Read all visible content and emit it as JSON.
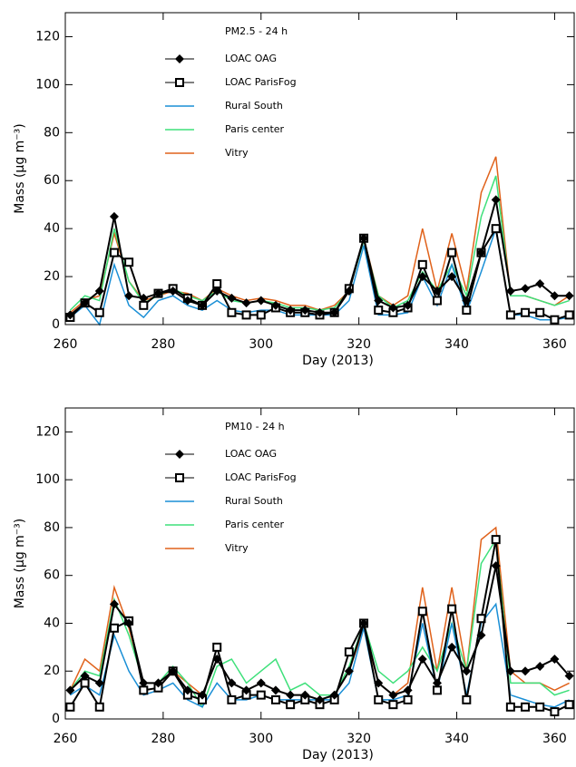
{
  "chart_data": [
    {
      "type": "line",
      "title": "PM2.5 - 24 h",
      "xlabel": "Day (2013)",
      "ylabel": "Mass (μg m⁻³)",
      "xlim": [
        260,
        364
      ],
      "ylim": [
        0,
        130
      ],
      "xticks": [
        260,
        280,
        300,
        320,
        340,
        360
      ],
      "yticks": [
        0,
        20,
        40,
        60,
        80,
        100,
        120
      ],
      "x": [
        261,
        264,
        267,
        270,
        273,
        276,
        279,
        282,
        285,
        288,
        291,
        294,
        297,
        300,
        303,
        306,
        309,
        312,
        315,
        318,
        321,
        324,
        327,
        330,
        333,
        336,
        339,
        342,
        345,
        348,
        351,
        354,
        357,
        360,
        363
      ],
      "series": [
        {
          "name": "LOAC OAG",
          "color": "#000000",
          "marker": "diamond",
          "values": [
            4,
            9,
            14,
            45,
            12,
            11,
            13,
            14,
            10,
            8,
            14,
            11,
            9,
            10,
            8,
            6,
            6,
            5,
            5,
            14,
            36,
            10,
            7,
            8,
            20,
            14,
            20,
            10,
            30,
            52,
            14,
            15,
            17,
            12,
            12
          ]
        },
        {
          "name": "LOAC ParisFog",
          "color": "#000000",
          "marker": "square",
          "values": [
            3,
            9,
            5,
            30,
            26,
            8,
            13,
            15,
            11,
            8,
            17,
            5,
            4,
            4,
            7,
            5,
            5,
            4,
            5,
            15,
            36,
            6,
            5,
            7,
            25,
            10,
            30,
            6,
            30,
            40,
            4,
            5,
            5,
            2,
            4
          ]
        },
        {
          "name": "Rural South",
          "color": "#1a8fd6",
          "values": [
            3,
            8,
            0,
            25,
            8,
            3,
            10,
            12,
            8,
            6,
            10,
            6,
            5,
            6,
            6,
            4,
            4,
            4,
            4,
            10,
            33,
            4,
            4,
            5,
            20,
            8,
            25,
            5,
            22,
            40,
            4,
            4,
            2,
            2,
            3
          ]
        },
        {
          "name": "Paris center",
          "color": "#3ee07a",
          "values": [
            6,
            12,
            10,
            40,
            18,
            9,
            12,
            15,
            12,
            10,
            14,
            10,
            9,
            10,
            9,
            7,
            7,
            6,
            7,
            14,
            35,
            12,
            7,
            10,
            22,
            14,
            25,
            12,
            45,
            62,
            12,
            12,
            10,
            8,
            10
          ]
        },
        {
          "name": "Vitry",
          "color": "#e0621b",
          "values": [
            5,
            10,
            12,
            38,
            18,
            10,
            12,
            14,
            13,
            10,
            15,
            12,
            10,
            11,
            10,
            8,
            8,
            6,
            8,
            14,
            36,
            12,
            8,
            12,
            40,
            14,
            38,
            14,
            55,
            70,
            12,
            12,
            10,
            8,
            12
          ]
        }
      ]
    },
    {
      "type": "line",
      "title": "PM10 - 24 h",
      "xlabel": "Day (2013)",
      "ylabel": "Mass (μg m⁻³)",
      "xlim": [
        260,
        364
      ],
      "ylim": [
        0,
        130
      ],
      "xticks": [
        260,
        280,
        300,
        320,
        340,
        360
      ],
      "yticks": [
        0,
        20,
        40,
        60,
        80,
        100,
        120
      ],
      "x": [
        261,
        264,
        267,
        270,
        273,
        276,
        279,
        282,
        285,
        288,
        291,
        294,
        297,
        300,
        303,
        306,
        309,
        312,
        315,
        318,
        321,
        324,
        327,
        330,
        333,
        336,
        339,
        342,
        345,
        348,
        351,
        354,
        357,
        360,
        363
      ],
      "series": [
        {
          "name": "LOAC OAG",
          "color": "#000000",
          "marker": "diamond",
          "values": [
            12,
            18,
            15,
            48,
            40,
            15,
            15,
            20,
            12,
            10,
            25,
            15,
            12,
            15,
            12,
            10,
            10,
            8,
            10,
            20,
            40,
            15,
            10,
            12,
            25,
            15,
            30,
            20,
            35,
            64,
            20,
            20,
            22,
            25,
            18
          ]
        },
        {
          "name": "LOAC ParisFog",
          "color": "#000000",
          "marker": "square",
          "values": [
            5,
            15,
            5,
            38,
            41,
            12,
            13,
            20,
            10,
            8,
            30,
            8,
            10,
            10,
            8,
            6,
            8,
            6,
            8,
            28,
            40,
            8,
            6,
            8,
            45,
            12,
            46,
            8,
            42,
            75,
            5,
            5,
            5,
            3,
            6
          ]
        },
        {
          "name": "Rural South",
          "color": "#1a8fd6",
          "values": [
            10,
            14,
            10,
            35,
            20,
            10,
            12,
            15,
            8,
            5,
            15,
            8,
            8,
            10,
            8,
            8,
            8,
            8,
            8,
            15,
            38,
            8,
            8,
            10,
            40,
            12,
            40,
            10,
            40,
            48,
            10,
            8,
            6,
            5,
            8
          ]
        },
        {
          "name": "Paris center",
          "color": "#3ee07a",
          "values": [
            12,
            20,
            18,
            50,
            35,
            15,
            15,
            22,
            15,
            5,
            22,
            25,
            15,
            20,
            25,
            12,
            15,
            10,
            10,
            22,
            40,
            20,
            15,
            20,
            30,
            20,
            40,
            20,
            65,
            75,
            15,
            15,
            15,
            10,
            12
          ]
        },
        {
          "name": "Vitry",
          "color": "#e0621b",
          "values": [
            12,
            25,
            20,
            55,
            38,
            15,
            15,
            20,
            15,
            10,
            25,
            15,
            12,
            15,
            12,
            10,
            10,
            8,
            10,
            20,
            38,
            15,
            10,
            15,
            55,
            20,
            55,
            20,
            75,
            80,
            20,
            15,
            15,
            12,
            15
          ]
        }
      ]
    }
  ]
}
